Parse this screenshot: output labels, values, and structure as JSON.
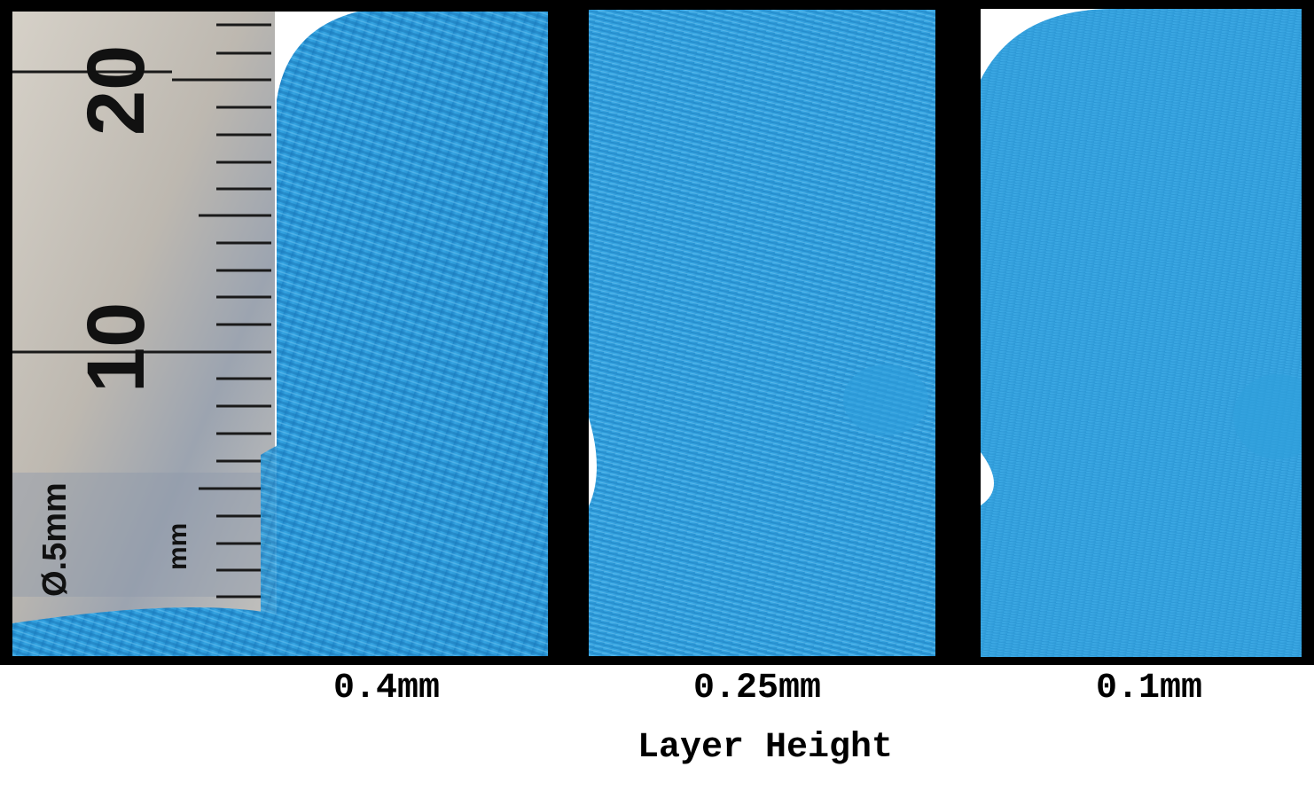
{
  "panels": [
    {
      "caption": "0.4mm",
      "ruler": {
        "label_20": "20",
        "label_10": "10",
        "unit": "mm",
        "spec": "Ø.5mm"
      }
    },
    {
      "caption": "0.25mm"
    },
    {
      "caption": "0.1mm"
    }
  ],
  "axis_title": "Layer Height",
  "colors": {
    "filament": "#2a9ad8",
    "background": "#000000",
    "ruler_metal": "#c9c4bc"
  }
}
